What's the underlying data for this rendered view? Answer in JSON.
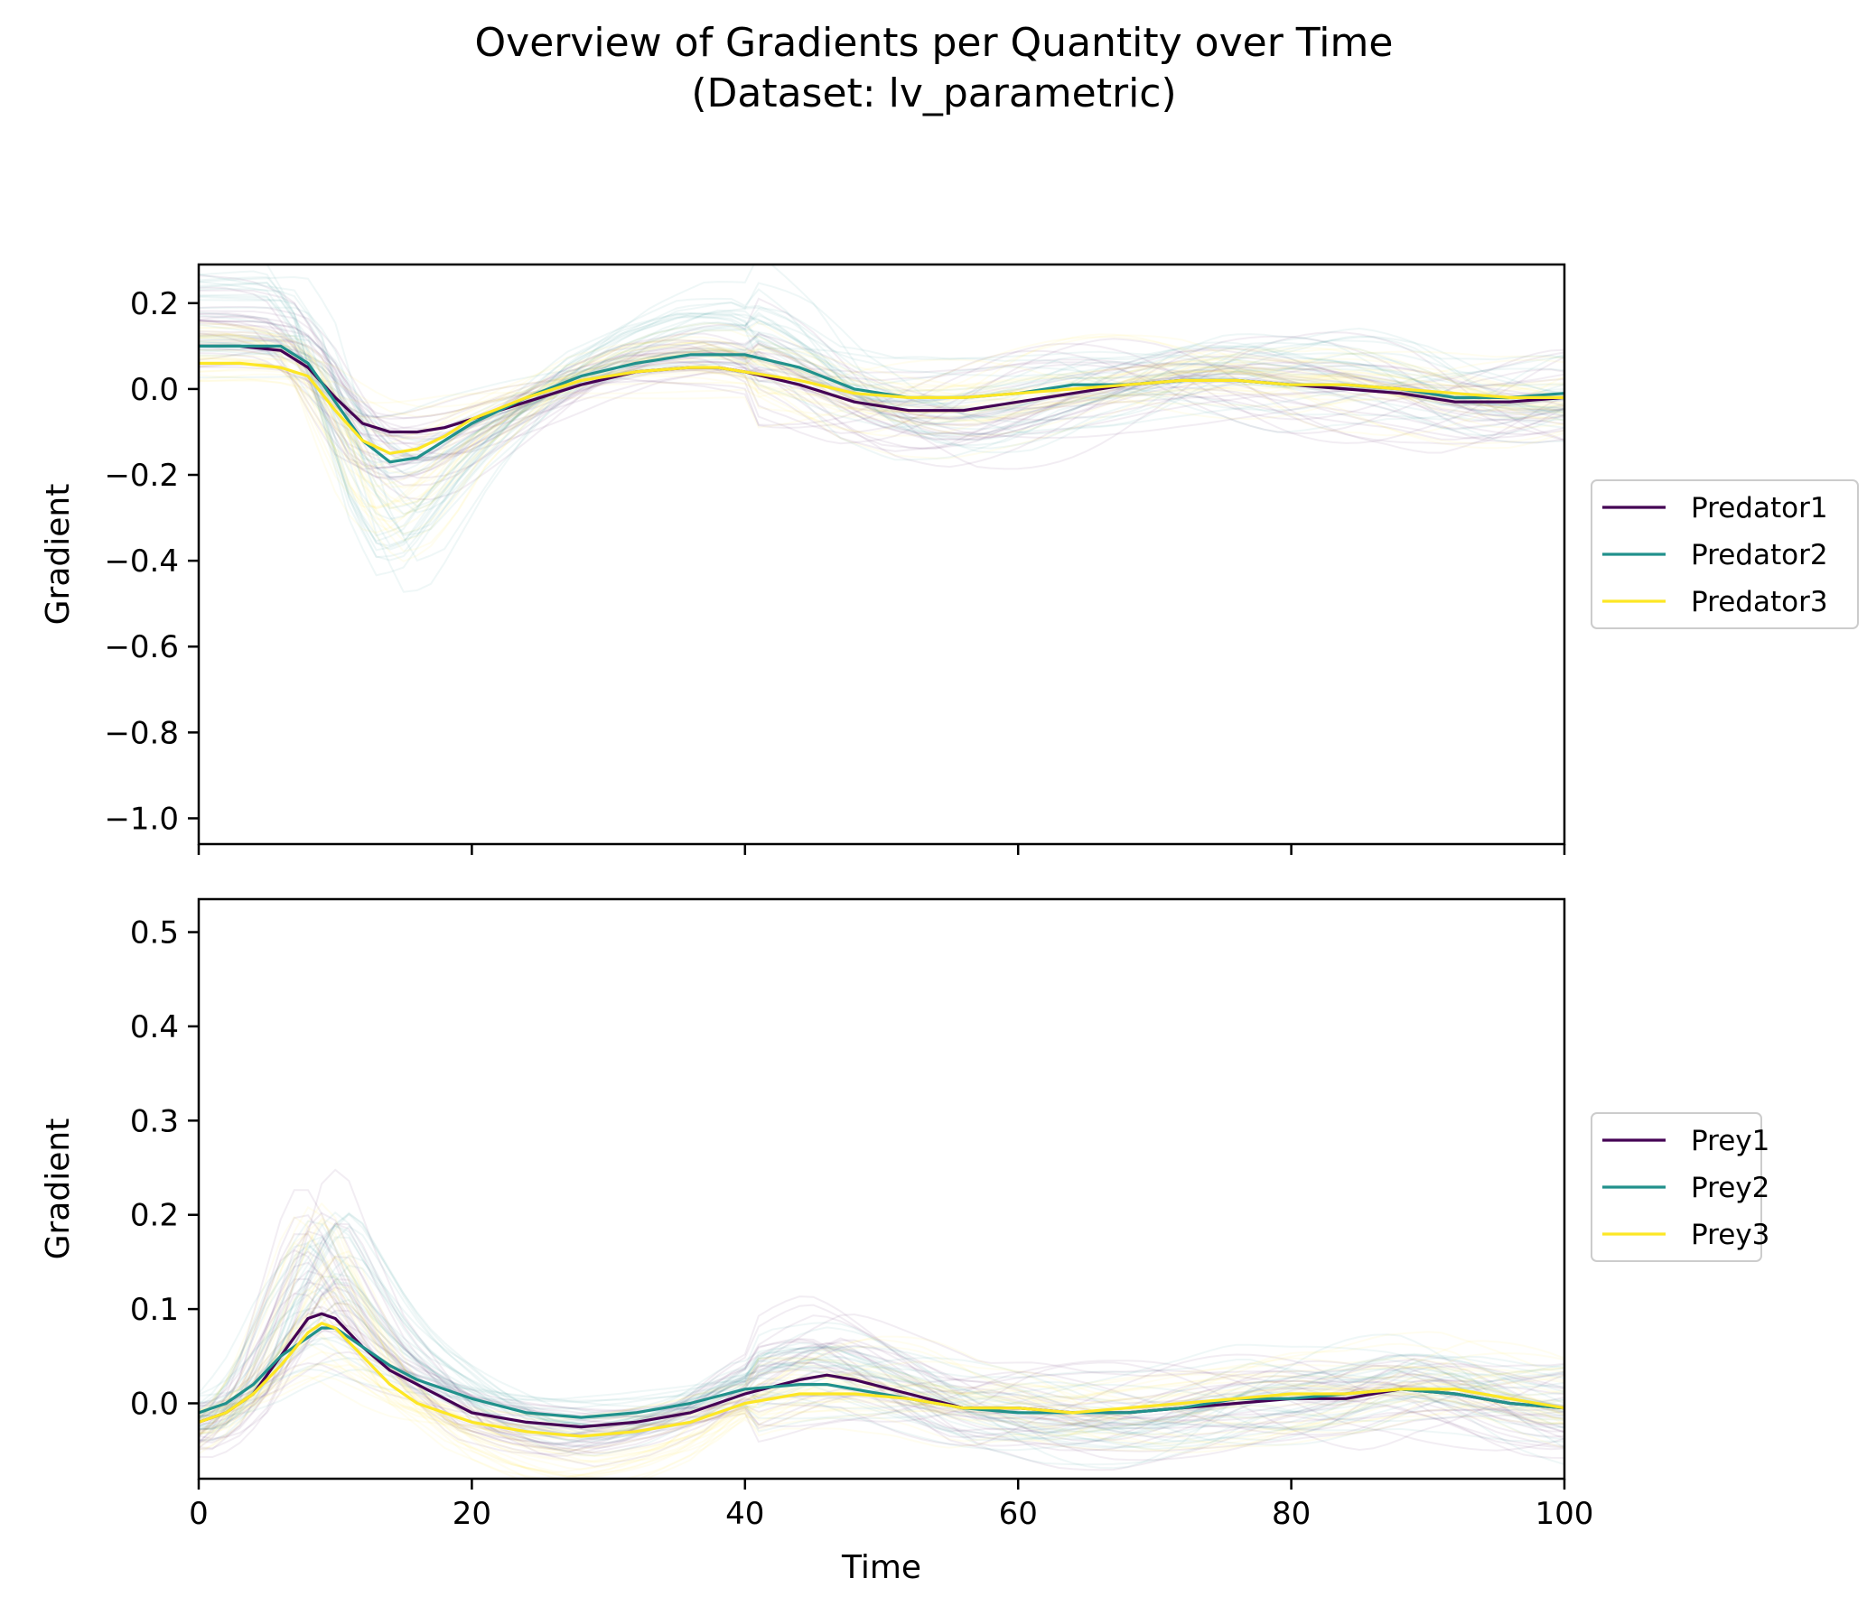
{
  "figure": {
    "title_line1": "Overview of Gradients per Quantity over Time",
    "title_line2": "(Dataset: lv_parametric)"
  },
  "colors": {
    "series1": "#440154",
    "series2": "#21918c",
    "series3": "#fde725",
    "axis": "#000000",
    "background": "#ffffff"
  },
  "chart_data": [
    {
      "type": "line",
      "title": "",
      "xlabel": "",
      "ylabel": "Gradient",
      "xlim": [
        0,
        100
      ],
      "ylim": [
        -1.06,
        0.29
      ],
      "x_ticks": [
        0,
        20,
        40,
        60,
        80,
        100
      ],
      "x_tick_labels_visible": false,
      "y_ticks": [
        0.2,
        0.0,
        -0.2,
        -0.4,
        -0.6,
        -0.8,
        -1.0
      ],
      "y_tick_labels": [
        "0.2",
        "0.0",
        "−0.2",
        "−0.4",
        "−0.6",
        "−0.8",
        "−1.0"
      ],
      "legend_position": "center-right, outside",
      "background_traces": "many faint per-sample gradient curves",
      "x": [
        0,
        3,
        6,
        8,
        10,
        12,
        14,
        16,
        18,
        20,
        24,
        28,
        32,
        36,
        38,
        40,
        44,
        48,
        52,
        56,
        60,
        64,
        68,
        72,
        76,
        80,
        84,
        88,
        92,
        96,
        100
      ],
      "series": [
        {
          "name": "Predator1",
          "values": [
            0.1,
            0.1,
            0.09,
            0.05,
            -0.02,
            -0.08,
            -0.1,
            -0.1,
            -0.09,
            -0.07,
            -0.03,
            0.01,
            0.04,
            0.05,
            0.05,
            0.04,
            0.01,
            -0.03,
            -0.05,
            -0.05,
            -0.03,
            -0.01,
            0.01,
            0.02,
            0.02,
            0.01,
            0.0,
            -0.01,
            -0.03,
            -0.03,
            -0.02
          ]
        },
        {
          "name": "Predator2",
          "values": [
            0.1,
            0.1,
            0.1,
            0.06,
            -0.03,
            -0.12,
            -0.17,
            -0.16,
            -0.12,
            -0.08,
            -0.02,
            0.03,
            0.06,
            0.08,
            0.08,
            0.08,
            0.05,
            0.0,
            -0.02,
            -0.02,
            -0.01,
            0.01,
            0.01,
            0.02,
            0.02,
            0.01,
            0.01,
            0.0,
            -0.02,
            -0.02,
            -0.01
          ]
        },
        {
          "name": "Predator3",
          "values": [
            0.06,
            0.06,
            0.05,
            0.03,
            -0.05,
            -0.12,
            -0.15,
            -0.14,
            -0.11,
            -0.07,
            -0.02,
            0.02,
            0.04,
            0.05,
            0.05,
            0.04,
            0.02,
            -0.01,
            -0.02,
            -0.02,
            -0.01,
            0.0,
            0.01,
            0.02,
            0.02,
            0.01,
            0.01,
            0.0,
            -0.01,
            -0.02,
            -0.02
          ]
        }
      ]
    },
    {
      "type": "line",
      "title": "",
      "xlabel": "Time",
      "ylabel": "Gradient",
      "xlim": [
        0,
        100
      ],
      "ylim": [
        -0.08,
        0.535
      ],
      "x_ticks": [
        0,
        20,
        40,
        60,
        80,
        100
      ],
      "x_tick_labels": [
        "0",
        "20",
        "40",
        "60",
        "80",
        "100"
      ],
      "y_ticks": [
        0.5,
        0.4,
        0.3,
        0.2,
        0.1,
        0.0
      ],
      "y_tick_labels": [
        "0.5",
        "0.4",
        "0.3",
        "0.2",
        "0.1",
        "0.0"
      ],
      "legend_position": "center-right, outside",
      "background_traces": "many faint per-sample gradient curves",
      "x": [
        0,
        2,
        4,
        6,
        8,
        9,
        10,
        12,
        14,
        16,
        20,
        24,
        28,
        32,
        36,
        40,
        44,
        46,
        48,
        52,
        56,
        60,
        64,
        68,
        72,
        76,
        80,
        84,
        88,
        92,
        96,
        100
      ],
      "series": [
        {
          "name": "Prey1",
          "values": [
            -0.02,
            -0.01,
            0.01,
            0.05,
            0.09,
            0.095,
            0.09,
            0.06,
            0.035,
            0.02,
            -0.01,
            -0.02,
            -0.025,
            -0.02,
            -0.01,
            0.01,
            0.025,
            0.03,
            0.025,
            0.01,
            -0.005,
            -0.005,
            -0.01,
            -0.01,
            -0.005,
            0.0,
            0.005,
            0.005,
            0.015,
            0.01,
            0.0,
            -0.005
          ]
        },
        {
          "name": "Prey2",
          "values": [
            -0.01,
            0.0,
            0.02,
            0.05,
            0.07,
            0.08,
            0.08,
            0.06,
            0.04,
            0.025,
            0.005,
            -0.01,
            -0.015,
            -0.01,
            0.0,
            0.015,
            0.02,
            0.02,
            0.015,
            0.005,
            -0.005,
            -0.01,
            -0.01,
            -0.01,
            -0.005,
            0.005,
            0.005,
            0.01,
            0.015,
            0.01,
            0.0,
            -0.005
          ]
        },
        {
          "name": "Prey3",
          "values": [
            -0.02,
            -0.01,
            0.01,
            0.04,
            0.075,
            0.085,
            0.08,
            0.05,
            0.02,
            0.0,
            -0.02,
            -0.03,
            -0.035,
            -0.03,
            -0.02,
            0.0,
            0.01,
            0.01,
            0.01,
            0.005,
            -0.005,
            -0.005,
            -0.01,
            -0.005,
            0.0,
            0.005,
            0.01,
            0.01,
            0.015,
            0.015,
            0.005,
            -0.005
          ]
        }
      ]
    }
  ]
}
